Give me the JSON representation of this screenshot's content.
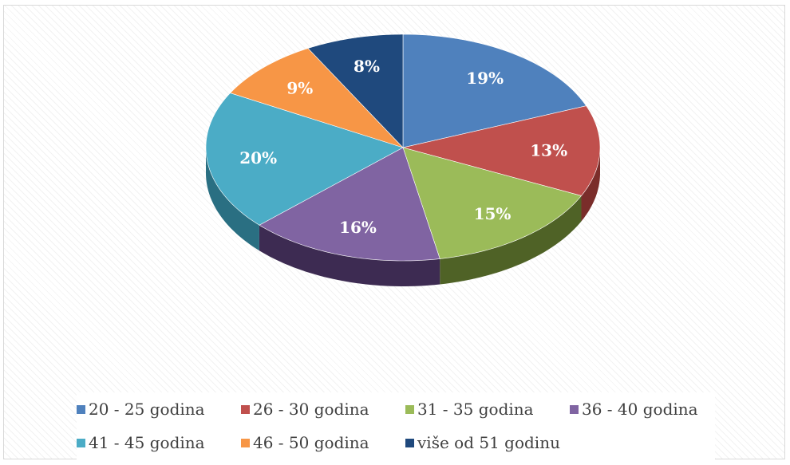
{
  "chart_data": {
    "type": "pie",
    "title": "",
    "slices": [
      {
        "label": "20 - 25 godina",
        "value": 19,
        "display": "19%",
        "color": "#4F81BD",
        "side_color": "#2F4D73"
      },
      {
        "label": "26 - 30 godina",
        "value": 13,
        "display": "13%",
        "color": "#C0504D",
        "side_color": "#7A2D2A"
      },
      {
        "label": "31 - 35 godina",
        "value": 15,
        "display": "15%",
        "color": "#9BBB59",
        "side_color": "#4F6226"
      },
      {
        "label": "36 - 40 godina",
        "value": 16,
        "display": "16%",
        "color": "#8064A2",
        "side_color": "#3D2B52"
      },
      {
        "label": "41 - 45 godina",
        "value": 20,
        "display": "20%",
        "color": "#4BACC6",
        "side_color": "#2A6F82"
      },
      {
        "label": "46 - 50 godina",
        "value": 9,
        "display": "9%",
        "color": "#F79646",
        "side_color": "#A35A1B"
      },
      {
        "label": "više od 51 godinu",
        "value": 8,
        "display": "8%",
        "color": "#1F497D",
        "side_color": "#102845"
      }
    ],
    "legend_position": "bottom",
    "style": "3d"
  }
}
